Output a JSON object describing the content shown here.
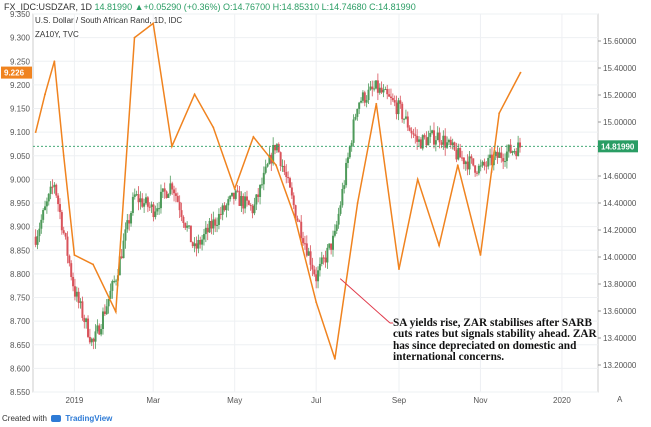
{
  "header": {
    "symbol": "FX_IDC:USDZAR, 1D",
    "ohlc_text": "14.81990 ▲+0.05290 (+0.36%) O:14.76700 H:14.85310 L:14.74680 C:14.81990",
    "subtitle": "U.S. Dollar / South African Rand, 1D, IDC",
    "overlay_label": "ZA10Y, TVC"
  },
  "annotation": "SA yields rise, ZAR stabilises after SARB cuts rates but signals stability ahead. ZAR has since depreciated on domestic and international concerns.",
  "footer": {
    "created_with": "Created with",
    "brand": "TradingView"
  },
  "axis_mode_label": "A",
  "colors": {
    "candle_up": "#4e9a5a",
    "candle_down": "#d9535b",
    "za10y_line": "#f0831f",
    "annotation_arrow": "#e0394a",
    "price_tag_green": "#2a9d64",
    "yield_tag_orange": "#f0831f"
  },
  "chart_data": {
    "type": "line",
    "title": "U.S. Dollar / South African Rand, 1D, IDC",
    "xlabel": "",
    "ylabel": "",
    "x_ticks": [
      "2019",
      "Mar",
      "May",
      "Jul",
      "Sep",
      "Nov",
      "2020"
    ],
    "left_axis": {
      "series": "ZA10Y",
      "ylim": [
        8.55,
        9.35
      ],
      "ticks": [
        "9.350",
        "9.300",
        "9.250",
        "9.200",
        "9.150",
        "9.100",
        "9.050",
        "9.000",
        "8.950",
        "8.900",
        "8.850",
        "8.800",
        "8.750",
        "8.700",
        "8.650",
        "8.600",
        "8.550"
      ],
      "last_value": "9.226"
    },
    "right_axis": {
      "series": "USDZAR",
      "ylim": [
        13.0,
        15.8
      ],
      "ticks": [
        "15.60000",
        "15.40000",
        "15.20000",
        "15.00000",
        "14.80000",
        "14.60000",
        "14.40000",
        "14.20000",
        "14.00000",
        "13.80000",
        "13.60000",
        "13.40000",
        "13.20000"
      ],
      "last_value": "14.81990"
    },
    "grid": true,
    "legend": "none",
    "series": [
      {
        "name": "FX_IDC:USDZAR",
        "type": "candlestick",
        "axis": "right",
        "dates": [
          "2018-12-03",
          "2018-12-17",
          "2019-01-01",
          "2019-01-15",
          "2019-02-01",
          "2019-02-15",
          "2019-03-01",
          "2019-03-15",
          "2019-04-01",
          "2019-04-15",
          "2019-05-01",
          "2019-05-15",
          "2019-06-01",
          "2019-06-15",
          "2019-07-01",
          "2019-07-15",
          "2019-08-01",
          "2019-08-15",
          "2019-09-01",
          "2019-09-15",
          "2019-10-01",
          "2019-10-15",
          "2019-11-01",
          "2019-11-15",
          "2019-12-01"
        ],
        "close": [
          14.15,
          14.55,
          13.75,
          13.35,
          13.85,
          14.45,
          14.35,
          14.55,
          14.05,
          14.25,
          14.45,
          14.35,
          14.85,
          14.35,
          13.85,
          14.15,
          15.15,
          15.25,
          15.1,
          14.85,
          14.9,
          14.75,
          14.65,
          14.75,
          14.82
        ]
      },
      {
        "name": "ZA10Y",
        "type": "line",
        "axis": "left",
        "dates": [
          "2018-12-03",
          "2018-12-10",
          "2018-12-17",
          "2018-12-24",
          "2019-01-01",
          "2019-01-15",
          "2019-02-01",
          "2019-02-15",
          "2019-03-01",
          "2019-03-15",
          "2019-04-01",
          "2019-04-15",
          "2019-05-01",
          "2019-05-15",
          "2019-06-01",
          "2019-06-15",
          "2019-07-01",
          "2019-07-15",
          "2019-08-01",
          "2019-08-15",
          "2019-09-01",
          "2019-09-15",
          "2019-10-01",
          "2019-10-15",
          "2019-11-01",
          "2019-11-15",
          "2019-12-01"
        ],
        "values": [
          9.1,
          9.18,
          9.25,
          9.05,
          8.84,
          8.82,
          8.72,
          9.3,
          9.33,
          9.07,
          9.18,
          9.11,
          8.98,
          9.09,
          9.03,
          8.92,
          8.74,
          8.62,
          8.95,
          9.16,
          8.81,
          9.0,
          8.86,
          9.03,
          8.84,
          9.14,
          9.226
        ]
      }
    ]
  }
}
